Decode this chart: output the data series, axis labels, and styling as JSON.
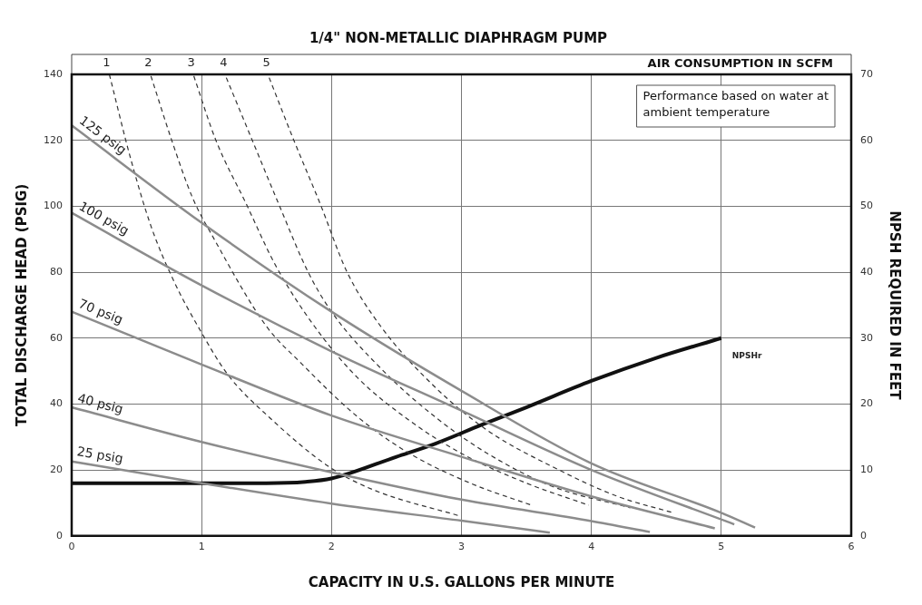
{
  "chart_data": {
    "type": "line",
    "title": "1/4\" NON-METALLIC DIAPHRAGM PUMP",
    "xlabel": "CAPACITY IN U.S. GALLONS PER MINUTE",
    "ylabel": "TOTAL DISCHARGE HEAD (PSIG)",
    "y2label": "NPSH REQUIRED IN FEET",
    "annotations": [
      "AIR CONSUMPTION IN SCFM",
      "Performance based on water at ambient temperature"
    ],
    "xlim": [
      0,
      6
    ],
    "xticks": [
      0,
      1,
      2,
      3,
      4,
      5,
      6
    ],
    "ylim": [
      0,
      140
    ],
    "yticks": [
      0,
      20,
      40,
      60,
      80,
      100,
      120,
      140
    ],
    "y2lim": [
      0,
      70
    ],
    "y2ticks": [
      0,
      10,
      20,
      30,
      40,
      50,
      60,
      70
    ],
    "grid": true,
    "legend": false,
    "marker": "none",
    "series": [
      {
        "name": "125 psig",
        "color": "#8c8c8c",
        "line_style": "solid",
        "x": [
          0,
          1,
          2,
          3,
          4,
          5,
          5.26
        ],
        "values": [
          124.5,
          95,
          68,
          44,
          22,
          7,
          2.5
        ]
      },
      {
        "name": "100 psig",
        "color": "#8c8c8c",
        "line_style": "solid",
        "x": [
          0,
          1,
          2,
          3,
          4,
          5.1
        ],
        "values": [
          98,
          76,
          56,
          38,
          20,
          3.5
        ]
      },
      {
        "name": "70 psig",
        "color": "#8c8c8c",
        "line_style": "solid",
        "x": [
          0,
          1,
          2,
          3,
          4,
          4.95
        ],
        "values": [
          68,
          52,
          36.5,
          24,
          12,
          2.3
        ]
      },
      {
        "name": "40 psig",
        "color": "#8c8c8c",
        "line_style": "solid",
        "x": [
          0,
          1,
          2,
          3,
          4,
          4.45
        ],
        "values": [
          39,
          28.5,
          19.3,
          11,
          4.5,
          1.2
        ]
      },
      {
        "name": "25 psig",
        "color": "#8c8c8c",
        "line_style": "solid",
        "x": [
          0,
          1,
          2,
          3,
          3.68
        ],
        "values": [
          22.6,
          16,
          9.8,
          4.6,
          1
        ]
      },
      {
        "name": "1",
        "color": "#333333",
        "line_style": "dashed",
        "x": [
          0.29,
          0.45,
          0.61,
          0.79,
          0.98,
          1.2,
          1.52,
          1.98,
          2.32,
          2.99
        ],
        "values": [
          140,
          115,
          94,
          77,
          63,
          49,
          36,
          21,
          14,
          6
        ]
      },
      {
        "name": "2",
        "color": "#333333",
        "line_style": "dashed",
        "x": [
          0.61,
          0.77,
          0.93,
          1.09,
          1.5,
          1.75,
          2.21,
          2.6,
          3.08,
          3.54
        ],
        "values": [
          139.5,
          120,
          102.6,
          90.5,
          63.5,
          53,
          35.8,
          25,
          15.8,
          9.3
        ]
      },
      {
        "name": "3",
        "color": "#333333",
        "line_style": "dashed",
        "x": [
          0.94,
          1.11,
          1.34,
          1.57,
          1.87,
          2.2,
          2.6,
          3,
          3.5,
          3.98
        ],
        "values": [
          139.5,
          120,
          101,
          82,
          63.5,
          48,
          35,
          25,
          16,
          9.3
        ]
      },
      {
        "name": "4",
        "color": "#333333",
        "line_style": "dashed",
        "x": [
          1.19,
          1.39,
          1.59,
          1.82,
          2,
          2.4,
          2.8,
          3.2,
          3.7,
          4.3
        ],
        "values": [
          139,
          120,
          101,
          80,
          68,
          50,
          36,
          25,
          15,
          8.5
        ]
      },
      {
        "name": "5",
        "color": "#333333",
        "line_style": "dashed",
        "x": [
          1.52,
          1.71,
          1.91,
          2.12,
          2.38,
          2.8,
          3.2,
          3.7,
          4.2,
          4.63
        ],
        "values": [
          139,
          120,
          101,
          80,
          63.5,
          45,
          32,
          21,
          12,
          7
        ]
      },
      {
        "name": "NPSHr",
        "color": "#111111",
        "line_style": "solid",
        "axis": "y2",
        "x": [
          0,
          1,
          1.5,
          1.8,
          2,
          2.5,
          2.8,
          3.15,
          3.5,
          4,
          4.5,
          5
        ],
        "values": [
          8,
          8,
          8,
          8.2,
          8.7,
          12,
          14,
          16.8,
          19.5,
          23.5,
          27,
          30
        ]
      }
    ]
  }
}
